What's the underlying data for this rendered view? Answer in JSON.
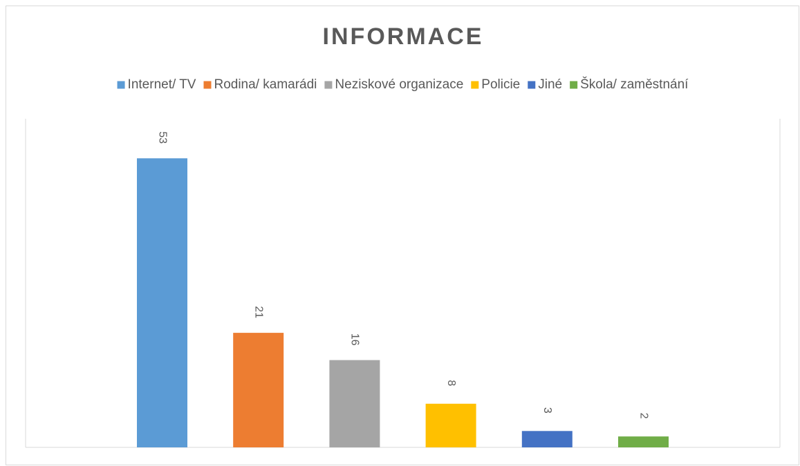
{
  "chart_data": {
    "type": "bar",
    "title": "INFORMACE",
    "series": [
      {
        "name": "Internet/ TV",
        "color": "#5b9bd5",
        "values": [
          53
        ]
      },
      {
        "name": "Rodina/ kamarádi",
        "color": "#ed7d31",
        "values": [
          21
        ]
      },
      {
        "name": "Neziskové organizace",
        "color": "#a5a5a5",
        "values": [
          16
        ]
      },
      {
        "name": "Policie",
        "color": "#ffc000",
        "values": [
          8
        ]
      },
      {
        "name": "Jiné",
        "color": "#4472c4",
        "values": [
          3
        ]
      },
      {
        "name": "Škola/ zaměstnání",
        "color": "#70ad47",
        "values": [
          2
        ]
      }
    ],
    "ylim": [
      0,
      60
    ],
    "legend": "top",
    "data_labels": true
  }
}
